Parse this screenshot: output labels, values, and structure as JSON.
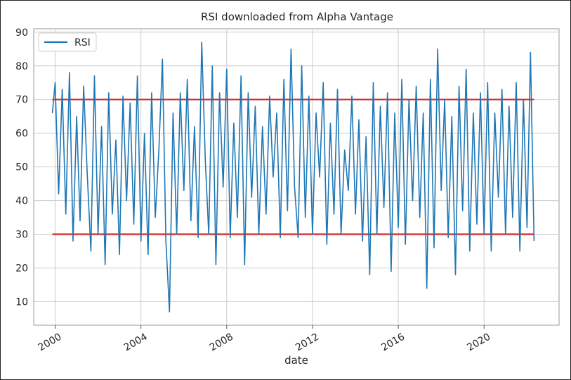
{
  "chart_data": {
    "type": "line",
    "title": "RSI downloaded from Alpha Vantage",
    "xlabel": "date",
    "ylabel": "",
    "xlim": [
      "1999-01-01",
      "2023-07-01"
    ],
    "ylim": [
      3,
      91
    ],
    "x_ticks": [
      "2000",
      "2004",
      "2008",
      "2012",
      "2016",
      "2020"
    ],
    "y_ticks": [
      10,
      20,
      30,
      40,
      50,
      60,
      70,
      80,
      90
    ],
    "grid": true,
    "legend": {
      "placement": "top-left",
      "entries": [
        "RSI"
      ]
    },
    "thresholds": [
      {
        "y": 70,
        "x_start": "1999-11-15",
        "x_end": "2022-05-01",
        "color": "#d62728"
      },
      {
        "y": 30,
        "x_start": "1999-11-15",
        "x_end": "2022-05-01",
        "color": "#d62728"
      }
    ],
    "series": [
      {
        "name": "RSI",
        "color": "#1f77b4",
        "x": [
          "1999-11-15",
          "2000-01-01",
          "2000-03-01",
          "2000-05-01",
          "2000-07-01",
          "2000-09-01",
          "2000-11-01",
          "2001-01-01",
          "2001-03-01",
          "2001-05-01",
          "2001-07-01",
          "2001-09-01",
          "2001-11-01",
          "2002-01-01",
          "2002-03-01",
          "2002-05-01",
          "2002-07-01",
          "2002-09-01",
          "2002-11-01",
          "2003-01-01",
          "2003-03-01",
          "2003-05-01",
          "2003-07-01",
          "2003-09-01",
          "2003-11-01",
          "2004-01-01",
          "2004-03-01",
          "2004-05-01",
          "2004-07-01",
          "2004-09-01",
          "2004-11-01",
          "2005-01-01",
          "2005-03-01",
          "2005-05-01",
          "2005-07-01",
          "2005-09-01",
          "2005-11-01",
          "2006-01-01",
          "2006-03-01",
          "2006-05-01",
          "2006-07-01",
          "2006-09-01",
          "2006-11-01",
          "2007-01-01",
          "2007-03-01",
          "2007-05-01",
          "2007-07-01",
          "2007-09-01",
          "2007-11-01",
          "2008-01-01",
          "2008-03-01",
          "2008-05-01",
          "2008-07-01",
          "2008-09-01",
          "2008-11-01",
          "2009-01-01",
          "2009-03-01",
          "2009-05-01",
          "2009-07-01",
          "2009-09-01",
          "2009-11-01",
          "2010-01-01",
          "2010-03-01",
          "2010-05-01",
          "2010-07-01",
          "2010-09-01",
          "2010-11-01",
          "2011-01-01",
          "2011-03-01",
          "2011-05-01",
          "2011-07-01",
          "2011-09-01",
          "2011-11-01",
          "2012-01-01",
          "2012-03-01",
          "2012-05-01",
          "2012-07-01",
          "2012-09-01",
          "2012-11-01",
          "2013-01-01",
          "2013-03-01",
          "2013-05-01",
          "2013-07-01",
          "2013-09-01",
          "2013-11-01",
          "2014-01-01",
          "2014-03-01",
          "2014-05-01",
          "2014-07-01",
          "2014-09-01",
          "2014-11-01",
          "2015-01-01",
          "2015-03-01",
          "2015-05-01",
          "2015-07-01",
          "2015-09-01",
          "2015-11-01",
          "2016-01-01",
          "2016-03-01",
          "2016-05-01",
          "2016-07-01",
          "2016-09-01",
          "2016-11-01",
          "2017-01-01",
          "2017-03-01",
          "2017-05-01",
          "2017-07-01",
          "2017-09-01",
          "2017-11-01",
          "2018-01-01",
          "2018-03-01",
          "2018-05-01",
          "2018-07-01",
          "2018-09-01",
          "2018-11-01",
          "2019-01-01",
          "2019-03-01",
          "2019-05-01",
          "2019-07-01",
          "2019-09-01",
          "2019-11-01",
          "2020-01-01",
          "2020-03-01",
          "2020-05-01",
          "2020-07-01",
          "2020-09-01",
          "2020-11-01",
          "2021-01-01",
          "2021-03-01",
          "2021-05-01",
          "2021-07-01",
          "2021-09-01",
          "2021-11-01",
          "2022-01-01",
          "2022-03-01",
          "2022-05-01"
        ],
        "y": [
          66,
          75,
          42,
          73,
          36,
          78,
          28,
          65,
          34,
          74,
          48,
          25,
          77,
          30,
          62,
          21,
          72,
          36,
          58,
          24,
          71,
          40,
          69,
          33,
          77,
          28,
          60,
          24,
          72,
          35,
          55,
          82,
          28,
          7,
          66,
          30,
          72,
          43,
          76,
          34,
          62,
          29,
          87,
          52,
          30,
          80,
          21,
          72,
          44,
          79,
          29,
          63,
          35,
          77,
          21,
          72,
          41,
          68,
          30,
          62,
          36,
          71,
          47,
          66,
          29,
          76,
          37,
          85,
          44,
          29,
          80,
          35,
          71,
          30,
          66,
          47,
          75,
          27,
          63,
          36,
          73,
          30,
          55,
          43,
          71,
          36,
          64,
          28,
          59,
          18,
          75,
          30,
          68,
          38,
          72,
          19,
          66,
          32,
          76,
          27,
          70,
          40,
          74,
          35,
          66,
          14,
          76,
          26,
          85,
          43,
          70,
          29,
          65,
          18,
          74,
          37,
          79,
          25,
          66,
          33,
          72,
          30,
          75,
          25,
          66,
          41,
          73,
          30,
          68,
          35,
          75,
          25,
          70,
          32,
          84,
          28
        ]
      }
    ]
  }
}
